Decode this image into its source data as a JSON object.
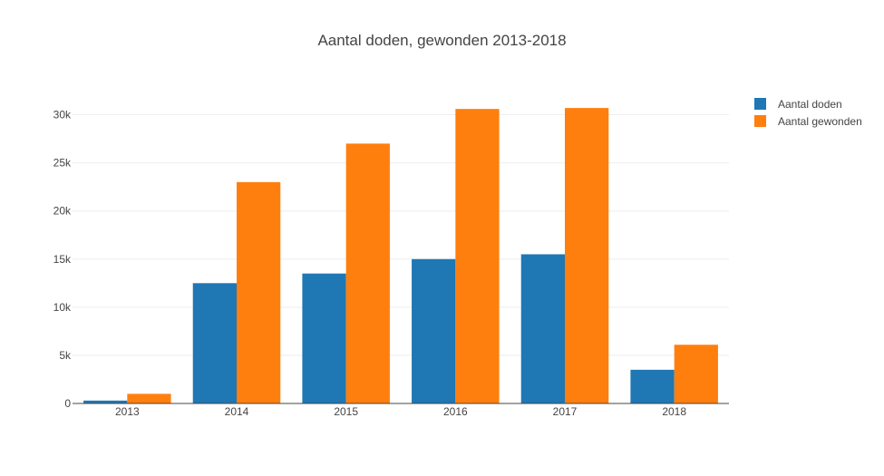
{
  "chart_data": {
    "type": "bar",
    "title": "Aantal doden, gewonden 2013-2018",
    "xlabel": "",
    "ylabel": "",
    "categories": [
      "2013",
      "2014",
      "2015",
      "2016",
      "2017",
      "2018"
    ],
    "series": [
      {
        "name": "Aantal doden",
        "color": "#1f77b4",
        "values": [
          300,
          12500,
          13500,
          15000,
          15500,
          3500
        ]
      },
      {
        "name": "Aantal gewonden",
        "color": "#ff7f0e",
        "values": [
          1000,
          23000,
          27000,
          30600,
          30700,
          6100
        ]
      }
    ],
    "ylim": [
      0,
      32500
    ],
    "yticks": [
      0,
      5000,
      10000,
      15000,
      20000,
      25000,
      30000
    ],
    "ytick_labels": [
      "0",
      "5k",
      "10k",
      "15k",
      "20k",
      "25k",
      "30k"
    ],
    "grid": true,
    "legend_position": "top-right"
  }
}
